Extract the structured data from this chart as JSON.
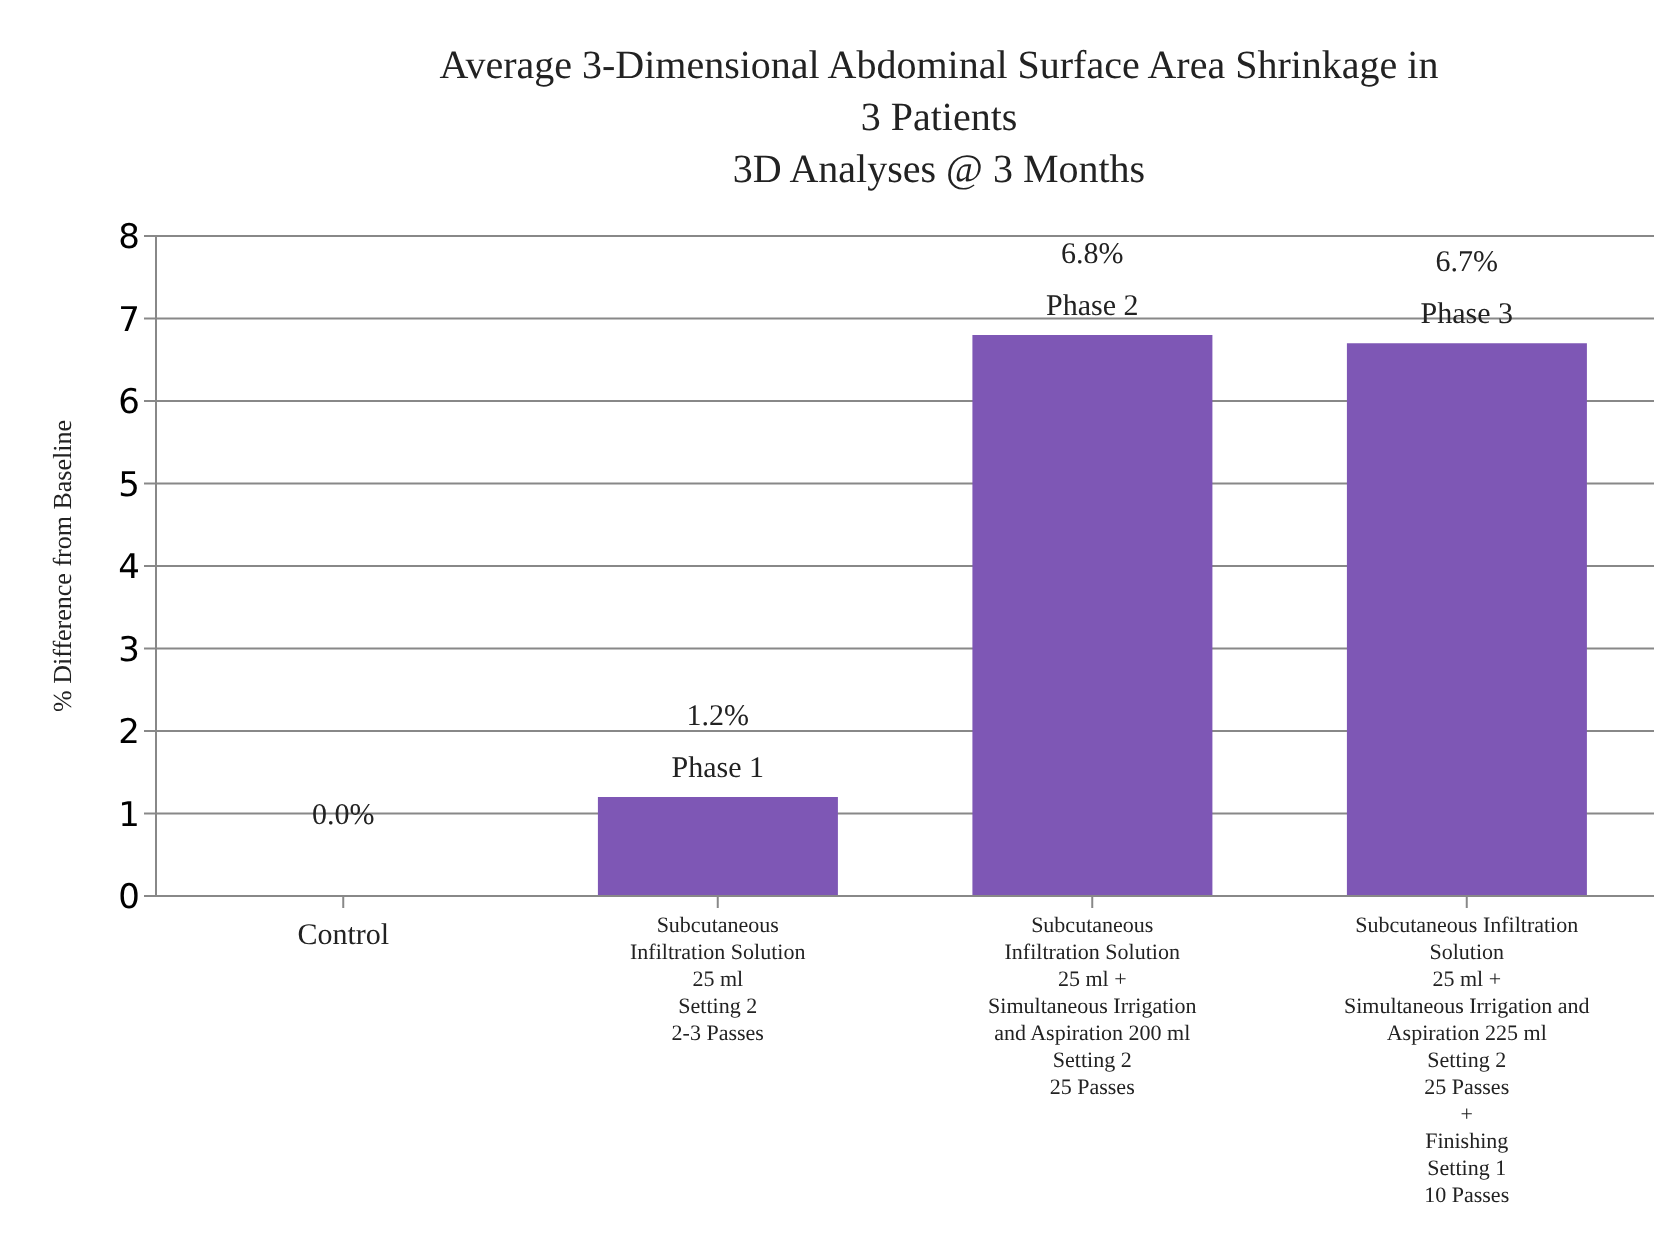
{
  "chart_data": {
    "type": "bar",
    "title": "Average 3-Dimensional Abdominal Surface Area Shrinkage in\n3 Patients\n3D Analyses @ 3 Months",
    "ylabel": "% Difference from Baseline",
    "categories": [
      "Control",
      "Subcutaneous\nInfiltration Solution\n25 ml\nSetting 2\n2-3 Passes",
      "Subcutaneous\nInfiltration Solution\n25 ml +\nSimultaneous Irrigation\nand Aspiration  200 ml\nSetting 2\n25 Passes",
      "Subcutaneous Infiltration\nSolution\n25 ml +\nSimultaneous Irrigation and\nAspiration  225 ml\nSetting 2\n25 Passes\n+\nFinishing\nSetting 1\n10 Passes"
    ],
    "values": [
      0,
      1.2,
      6.8,
      6.7
    ],
    "color": "#7e57b5",
    "value_labels": [
      "0.0%",
      "1.2%",
      "6.8%",
      "6.7%"
    ],
    "annotations": [
      {
        "text": "Phase 1",
        "x": "Subcutaneous\nInfiltration Solution\n25 ml\nSetting 2\n2-3 Passes",
        "y": 1.2
      },
      {
        "text": "Phase 2",
        "x": "Subcutaneous\nInfiltration Solution\n25 ml +\nSimultaneous Irrigation\nand Aspiration  200 ml\nSetting 2\n25 Passes",
        "y": 6.8
      },
      {
        "text": "Phase 3",
        "x": "Subcutaneous Infiltration\nSolution\n25 ml +\nSimultaneous Irrigation and\nAspiration  225 ml\nSetting 2\n25 Passes\n+\nFinishing\nSetting 1\n10 Passes",
        "y": 6.7
      }
    ],
    "ylim": [
      0,
      8
    ],
    "yticks": [
      0,
      1,
      2,
      3,
      4,
      5,
      6,
      7,
      8
    ],
    "grid": "y",
    "legend": false
  }
}
